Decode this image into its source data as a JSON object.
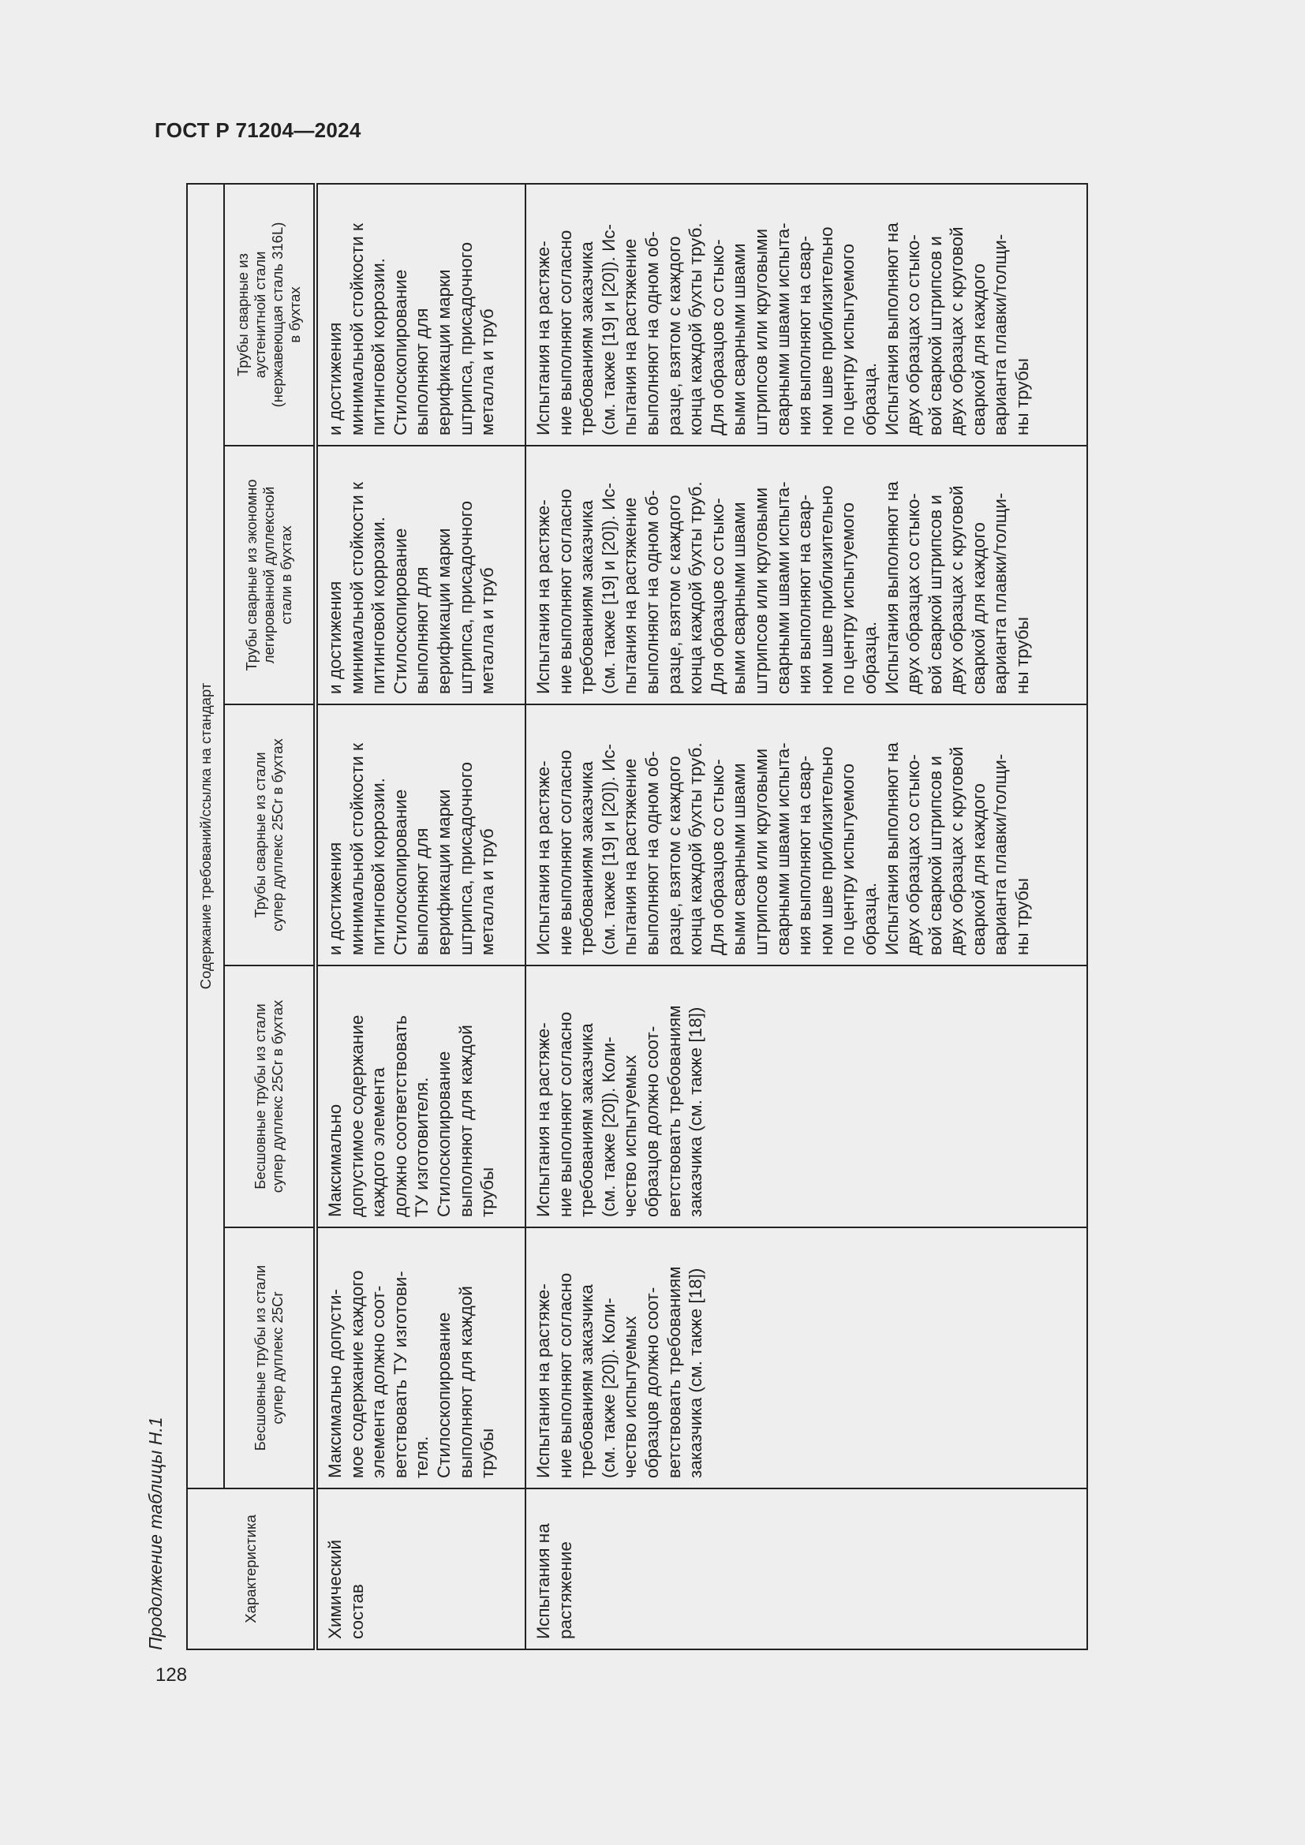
{
  "header": {
    "title": "ГОСТ Р 71204—2024"
  },
  "page_number": "128",
  "caption": "Продолжение таблицы Н.1",
  "table": {
    "group_header": "Содержание требований/ссылка на стандарт",
    "columns": [
      "Характеристика",
      "Бесшовные трубы из стали\nсупер дуплекс 25Cr",
      "Бесшовные трубы из стали\nсупер дуплекс 25Cr в бухтах",
      "Трубы сварные из стали\nсупер дуплекс 25Cr в бухтах",
      "Трубы сварные из экономно\nлегированной дуплексной\nстали в бухтах",
      "Трубы сварные из\nаустенитной стали\n(нержавеющая сталь 316L)\nв бухтах"
    ],
    "rows": [
      {
        "label": "Химический\nсостав",
        "cells": [
          "Максимально допусти-\nмое содержание каждого\nэлемента должно соот-\nветствовать ТУ изготови-\nтеля.\nСтилоскопирование\nвыполняют для каждой\nтрубы",
          "Максимально\nдопустимое содержание\nкаждого элемента\nдолжно соответствовать\nТУ изготовителя.\nСтилоскопирование\nвыполняют для каждой\nтрубы",
          "и достижения\nминимальной стойкости к\nпитинговой коррозии.\nСтилоскопирование\nвыполняют для\nверификации марки\nштрипса, присадочного\nметалла и труб",
          "и достижения\nминимальной стойкости к\nпитинговой коррозии.\nСтилоскопирование\nвыполняют для\nверификации марки\nштрипса, присадочного\nметалла и труб",
          "и достижения\nминимальной стойкости к\nпитинговой коррозии.\nСтилоскопирование\nвыполняют для\nверификации марки\nштрипса, присадочного\nметалла и труб"
        ]
      },
      {
        "label": "Испытания на\nрастяжение",
        "cells": [
          "Испытания на растяже-\nние выполняют согласно\nтребованиям заказчика\n(см. также [20]). Коли-\nчество испытуемых\nобразцов должно соот-\nветствовать требованиям\nзаказчика (см. также [18])",
          "Испытания на растяже-\nние выполняют согласно\nтребованиям заказчика\n(см. также [20]). Коли-\nчество испытуемых\nобразцов должно соот-\nветствовать требованиям\nзаказчика (см. также [18])",
          "Испытания на растяже-\nние выполняют согласно\nтребованиям заказчика\n(см. также [19] и [20]). Ис-\nпытания на растяжение\nвыполняют на одном об-\nразце, взятом с каждого\nконца каждой бухты труб.\nДля образцов со стыко-\nвыми сварными швами\nштрипсов или круговыми\nсварными швами испыта-\nния выполняют на свар-\nном шве приблизительно\nпо центру испытуемого\nобразца.\nИспытания выполняют на\nдвух образцах со стыко-\nвой сваркой штрипсов и\nдвух образцах с круговой\nсваркой для каждого\nварианта плавки/толщи-\nны трубы",
          "Испытания на растяже-\nние выполняют согласно\nтребованиям заказчика\n(см. также [19] и [20]). Ис-\nпытания на растяжение\nвыполняют на одном об-\nразце, взятом с каждого\nконца каждой бухты труб.\nДля образцов со стыко-\nвыми сварными швами\nштрипсов или круговыми\nсварными швами испыта-\nния выполняют на свар-\nном шве приблизительно\nпо центру испытуемого\nобразца.\nИспытания выполняют на\nдвух образцах со стыко-\nвой сваркой штрипсов и\nдвух образцах с круговой\nсваркой для каждого\nварианта плавки/толщи-\nны трубы",
          "Испытания на растяже-\nние выполняют согласно\nтребованиям заказчика\n(см. также [19] и [20]). Ис-\nпытания на растяжение\nвыполняют на одном об-\nразце, взятом с каждого\nконца каждой бухты труб.\nДля образцов со стыко-\nвыми сварными швами\nштрипсов или круговыми\nсварными швами испыта-\nния выполняют на свар-\nном шве приблизительно\nпо центру испытуемого\nобразца.\nИспытания выполняют на\nдвух образцах со стыко-\nвой сваркой штрипсов и\nдвух образцах с круговой\nсваркой для каждого\nварианта плавки/толщи-\nны трубы"
        ]
      }
    ]
  }
}
